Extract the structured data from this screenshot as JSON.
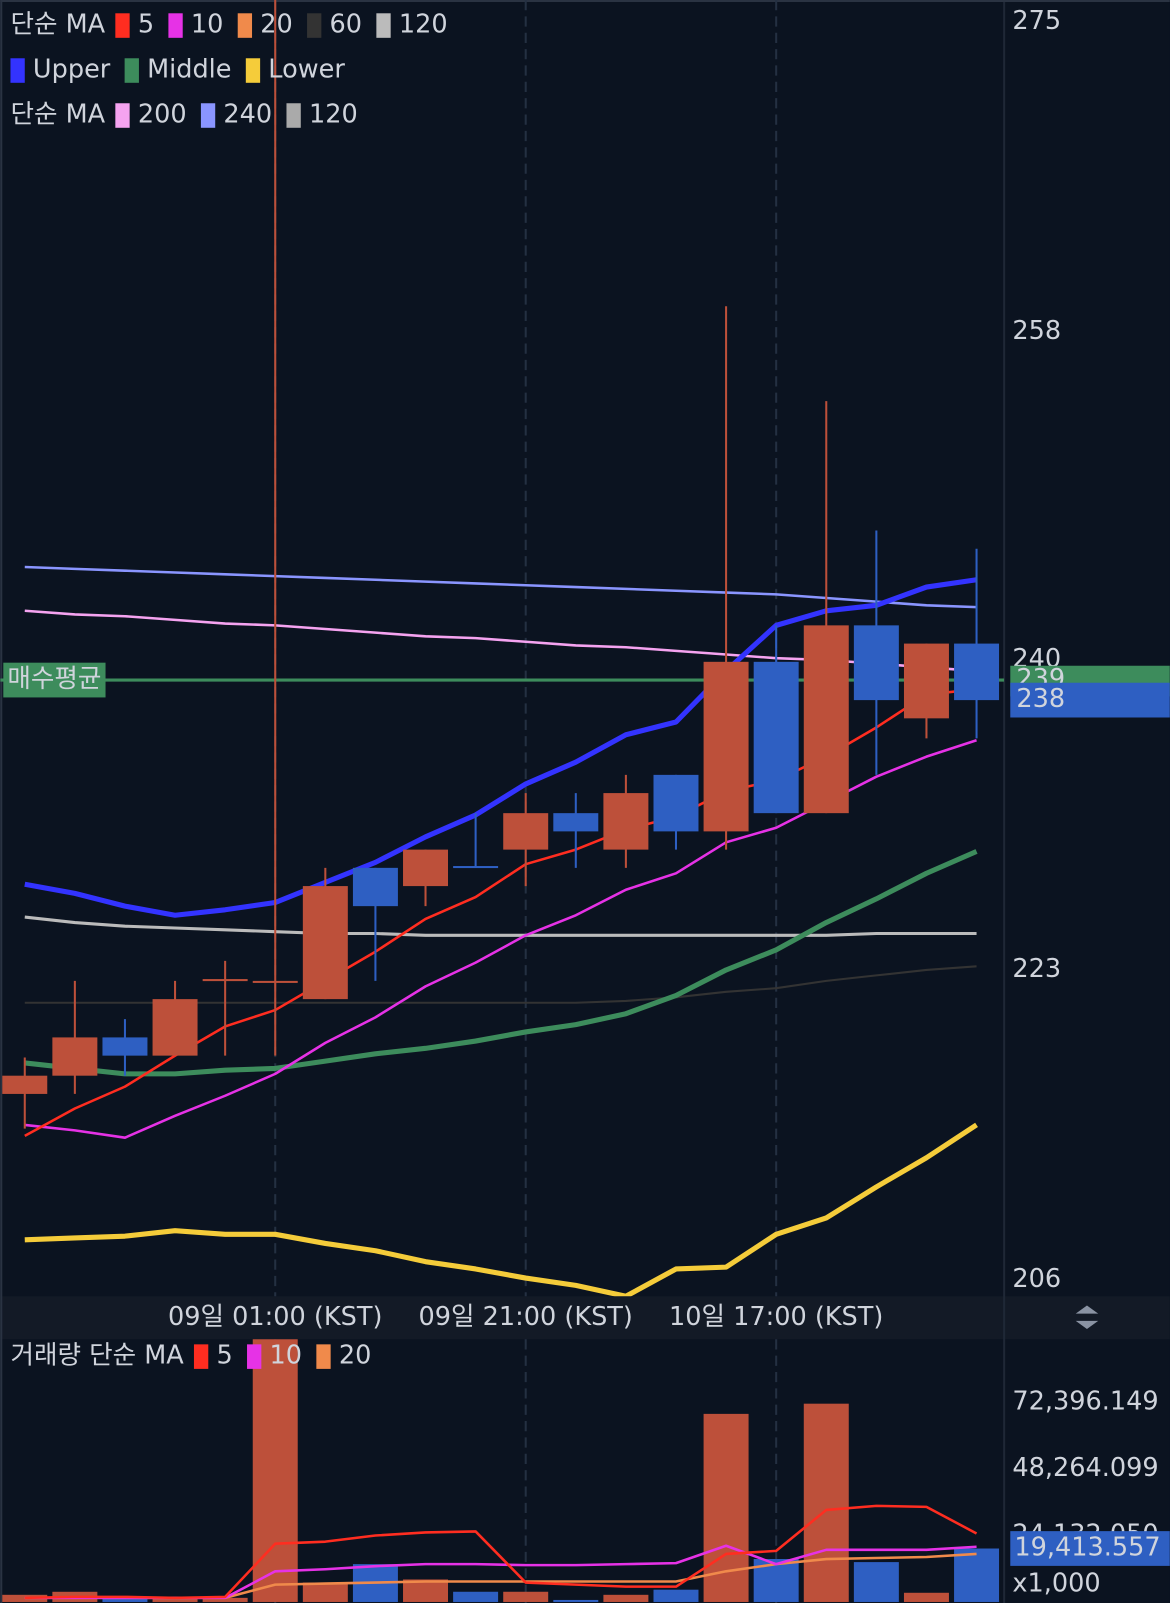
{
  "chart_data": {
    "type": "candlestick",
    "categories": [
      null,
      null,
      null,
      null,
      null,
      "09일 01:00 (KST)",
      null,
      null,
      null,
      null,
      "09일 21:00 (KST)",
      null,
      null,
      null,
      null,
      "10일 17:00 (KST)",
      null,
      null,
      null,
      null
    ],
    "candles": {
      "open": [
        216.2,
        217.2,
        219.3,
        218.3,
        222.4,
        222.3,
        221.4,
        228.6,
        227.6,
        228.7,
        229.6,
        231.6,
        229.6,
        233.7,
        230.6,
        239.9,
        231.6,
        241.9,
        236.8,
        240.9
      ],
      "high": [
        218.2,
        222.4,
        220.3,
        222.4,
        223.5,
        277,
        228.6,
        228.6,
        229.6,
        231.6,
        232.7,
        232.7,
        233.7,
        233.7,
        259.4,
        241.9,
        254.2,
        247.1,
        240.9,
        246.1
      ],
      "low": [
        214.3,
        216.2,
        217.2,
        218.3,
        218.3,
        218.3,
        221.4,
        222.4,
        226.5,
        228.6,
        227.6,
        228.6,
        228.6,
        229.6,
        229.6,
        231.6,
        231.6,
        233.7,
        235.7,
        235.7
      ],
      "close": [
        217.2,
        219.3,
        218.3,
        221.4,
        222.5,
        222.4,
        227.6,
        226.5,
        229.6,
        228.6,
        231.6,
        230.6,
        232.7,
        230.6,
        239.9,
        231.6,
        241.9,
        237.8,
        240.9,
        237.8
      ],
      "up_color": "#bd503a",
      "down_color": "#2e5fc2"
    },
    "ylim": [
      205.1,
      276.2
    ],
    "yticks": [
      275,
      258,
      240,
      223,
      206
    ],
    "legends": [
      {
        "prefix": "단순 MA",
        "items": [
          {
            "name": "5",
            "color": "#ff2d20"
          },
          {
            "name": "10",
            "color": "#e632e6"
          },
          {
            "name": "20",
            "color": "#f08a4b"
          },
          {
            "name": "60",
            "color": "#333333"
          },
          {
            "name": "120",
            "color": "#bbbbbb"
          }
        ]
      },
      {
        "prefix": null,
        "items": [
          {
            "name": "Upper",
            "color": "#3333ff"
          },
          {
            "name": "Middle",
            "color": "#3d8c5c"
          },
          {
            "name": "Lower",
            "color": "#f5cc3a"
          }
        ]
      },
      {
        "prefix": "단순 MA",
        "items": [
          {
            "name": "200",
            "color": "#f5a3f0"
          },
          {
            "name": "240",
            "color": "#8a95ff"
          },
          {
            "name": "120",
            "color": "#aaaaaa"
          }
        ]
      }
    ],
    "lines": [
      {
        "color": "#333333",
        "width": 2,
        "values": [
          221.2,
          221.2,
          221.2,
          221.2,
          221.2,
          221.2,
          221.2,
          221.2,
          221.2,
          221.2,
          221.2,
          221.2,
          221.3,
          221.5,
          221.8,
          222.0,
          222.4,
          222.7,
          223.0,
          223.2
        ]
      },
      {
        "color": "#bbbbbb",
        "width": 3,
        "values": [
          225.9,
          225.6,
          225.4,
          225.3,
          225.2,
          225.1,
          225.0,
          225.0,
          224.9,
          224.9,
          224.9,
          224.9,
          224.9,
          224.9,
          224.9,
          224.9,
          224.9,
          225.0,
          225.0,
          225.0
        ]
      },
      {
        "color": "#8a95ff",
        "width": 2.5,
        "values": [
          245.1,
          245.0,
          244.9,
          244.8,
          244.7,
          244.6,
          244.5,
          244.4,
          244.3,
          244.2,
          244.1,
          244.0,
          243.9,
          243.8,
          243.7,
          243.6,
          243.4,
          243.2,
          243.0,
          242.9
        ]
      },
      {
        "color": "#f5a3f0",
        "width": 2.5,
        "values": [
          242.7,
          242.5,
          242.4,
          242.2,
          242.0,
          241.9,
          241.7,
          241.5,
          241.3,
          241.2,
          241.0,
          240.8,
          240.7,
          240.5,
          240.3,
          240.1,
          240.0,
          239.8,
          239.6,
          239.4
        ]
      },
      {
        "color": "#f5cc3a",
        "width": 5,
        "values": [
          208.2,
          208.3,
          208.4,
          208.7,
          208.5,
          208.5,
          208.0,
          207.6,
          207.0,
          206.6,
          206.1,
          205.7,
          205.1,
          206.6,
          206.7,
          208.5,
          209.4,
          211.1,
          212.7,
          214.5
        ]
      },
      {
        "color": "#3d8c5c",
        "width": 5,
        "values": [
          217.9,
          217.6,
          217.3,
          217.3,
          217.5,
          217.6,
          218.0,
          218.4,
          218.7,
          219.1,
          219.6,
          220.0,
          220.6,
          221.6,
          223.0,
          224.1,
          225.6,
          226.9,
          228.3,
          229.5
        ]
      },
      {
        "color": "#3333ff",
        "width": 5,
        "values": [
          227.7,
          227.2,
          226.5,
          226.0,
          226.3,
          226.7,
          227.8,
          228.9,
          230.3,
          231.5,
          233.2,
          234.4,
          235.9,
          236.6,
          239.4,
          241.9,
          242.7,
          243.0,
          244.0,
          244.4
        ]
      },
      {
        "color": "#e632e6",
        "width": 2.5,
        "values": [
          214.5,
          214.2,
          213.8,
          215.0,
          216.1,
          217.3,
          219.0,
          220.4,
          222.1,
          223.4,
          224.9,
          226.0,
          227.4,
          228.3,
          230.0,
          230.8,
          232.2,
          233.6,
          234.7,
          235.6
        ]
      },
      {
        "color": "#ff2d20",
        "width": 2.5,
        "values": [
          213.9,
          215.4,
          216.6,
          218.3,
          219.9,
          220.8,
          222.4,
          224.0,
          225.8,
          227.0,
          228.8,
          229.6,
          230.7,
          231.4,
          232.8,
          233.4,
          234.7,
          236.3,
          238.1,
          238.4
        ]
      }
    ],
    "avg_line": {
      "label": "매수평균",
      "value": 238.9,
      "tag": "239",
      "color": "#3d8c5c"
    },
    "price_tag": {
      "value": 237.8,
      "label": "238",
      "color": "#2e5fc2"
    },
    "volume": {
      "legend": {
        "prefix": "거래량 단순 MA",
        "items": [
          {
            "name": "5",
            "color": "#ff2d20"
          },
          {
            "name": "10",
            "color": "#e632e6"
          },
          {
            "name": "20",
            "color": "#f08a4b"
          }
        ]
      },
      "values": [
        2600,
        3700,
        1860,
        1860,
        1500,
        98000,
        7050,
        13740,
        8170,
        3710,
        3710,
        740,
        2600,
        4460,
        68300,
        15600,
        72000,
        14480,
        3340,
        19413.557
      ],
      "ylim": [
        0,
        95400
      ],
      "yticks": [
        {
          "value": 72396.149,
          "label": "72,396.149"
        },
        {
          "value": 48264.099,
          "label": "48,264.099"
        },
        {
          "value": 24132.05,
          "label": "24,132.050"
        }
      ],
      "tag": {
        "value": 19413.557,
        "label": "19,413.557"
      },
      "unit": "x1,000",
      "lines": [
        {
          "color": "#f08a4b",
          "width": 2.5,
          "values": [
            1485,
            1485,
            1485,
            1485,
            1485,
            6310,
            6680,
            7050,
            7430,
            7430,
            7430,
            7430,
            7430,
            7430,
            11140,
            13740,
            15590,
            15970,
            16340,
            17450
          ]
        },
        {
          "color": "#e632e6",
          "width": 2.5,
          "values": [
            1485,
            1485,
            1485,
            1485,
            1485,
            11140,
            11880,
            13000,
            13740,
            13740,
            13370,
            13370,
            13740,
            14110,
            20420,
            13740,
            18940,
            18940,
            18940,
            20050
          ]
        },
        {
          "color": "#ff2d20",
          "width": 2.5,
          "values": [
            1485,
            1857,
            1857,
            1485,
            1857,
            21160,
            21900,
            24130,
            25250,
            25620,
            7050,
            6310,
            5570,
            5570,
            17450,
            18560,
            33420,
            34900,
            34530,
            24880
          ]
        }
      ]
    }
  }
}
